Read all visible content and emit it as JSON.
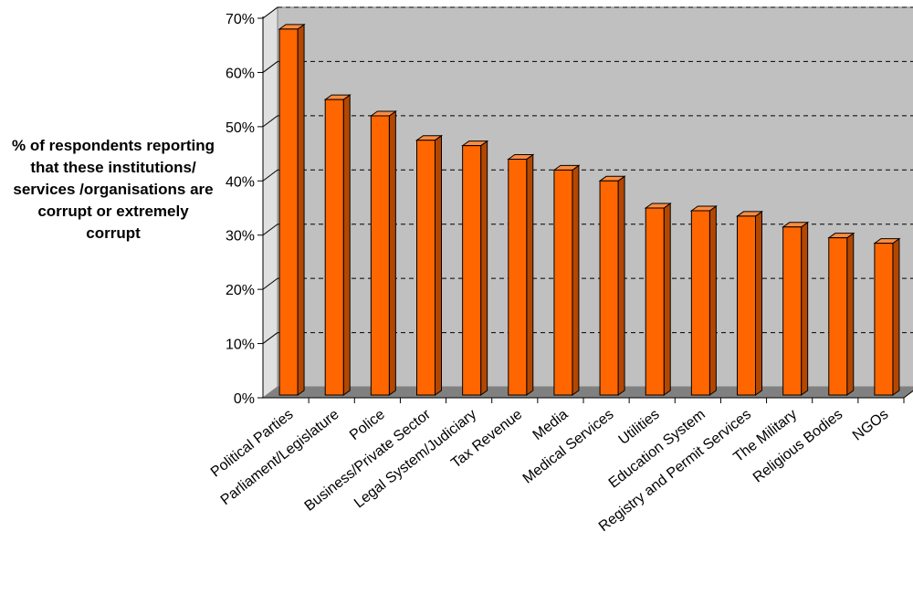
{
  "chart_data": {
    "type": "bar",
    "ylabel": "% of respondents reporting that these institutions/ services /organisations are corrupt or extremely corrupt",
    "categories": [
      "Political Parties",
      "Parliament/Legislature",
      "Police",
      "Business/Private Sector",
      "Legal System/Judiciary",
      "Tax Revenue",
      "Media",
      "Medical Services",
      "Utilities",
      "Education System",
      "Registry and Permit Services",
      "The Military",
      "Religious Bodies",
      "NGOs"
    ],
    "values": [
      68,
      55,
      52,
      47.5,
      46.5,
      44,
      42,
      40,
      35,
      34.5,
      33.5,
      31.5,
      29.5,
      28.5
    ],
    "ylim": [
      0,
      70
    ],
    "yticks": [
      "0%",
      "10%",
      "20%",
      "30%",
      "40%",
      "50%",
      "60%",
      "70%"
    ],
    "grid": true,
    "colors": {
      "bar_front": "#ff6600",
      "bar_side": "#b34700",
      "bar_top": "#ff8c40",
      "plot_back": "#c0c0c0",
      "floor": "#808080",
      "side_wall": "#e0e0e0"
    }
  }
}
